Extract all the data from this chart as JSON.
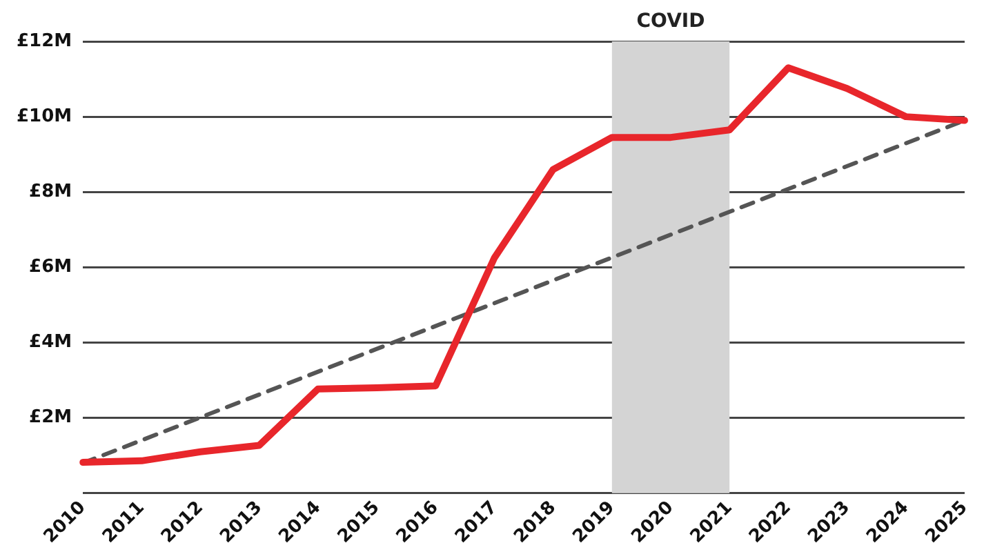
{
  "chart_data": {
    "type": "line",
    "categories": [
      "2010",
      "2011",
      "2012",
      "2013",
      "2014",
      "2015",
      "2016",
      "2017",
      "2018",
      "2019",
      "2020",
      "2021",
      "2022",
      "2023",
      "2024",
      "2025"
    ],
    "series": [
      {
        "color": "#e8262b",
        "values": [
          0.82,
          0.86,
          1.1,
          1.27,
          2.77,
          2.8,
          2.85,
          6.25,
          8.6,
          9.45,
          9.45,
          9.65,
          11.3,
          10.75,
          10.0,
          9.9
        ],
        "line_style": "solid"
      },
      {
        "type": "line",
        "color": "#555555",
        "values": [
          0.8,
          null,
          null,
          null,
          null,
          null,
          null,
          null,
          null,
          null,
          null,
          null,
          null,
          null,
          null,
          9.9
        ],
        "line_style": "dashed"
      }
    ],
    "ylim": [
      0,
      12
    ],
    "yticks": [
      {
        "value": 0,
        "label": null
      },
      {
        "value": 2,
        "label": "£2M"
      },
      {
        "value": 4,
        "label": "£4M"
      },
      {
        "value": 6,
        "label": "£6M"
      },
      {
        "value": 8,
        "label": "£8M"
      },
      {
        "value": 10,
        "label": "£10M"
      },
      {
        "value": 12,
        "label": "£12M"
      }
    ],
    "bands": [
      {
        "axis": "x",
        "from": "2019",
        "to": "2021",
        "label": "COVID",
        "color": "#d4d4d4"
      }
    ],
    "grid": "y",
    "legend": false,
    "marker": "none"
  }
}
